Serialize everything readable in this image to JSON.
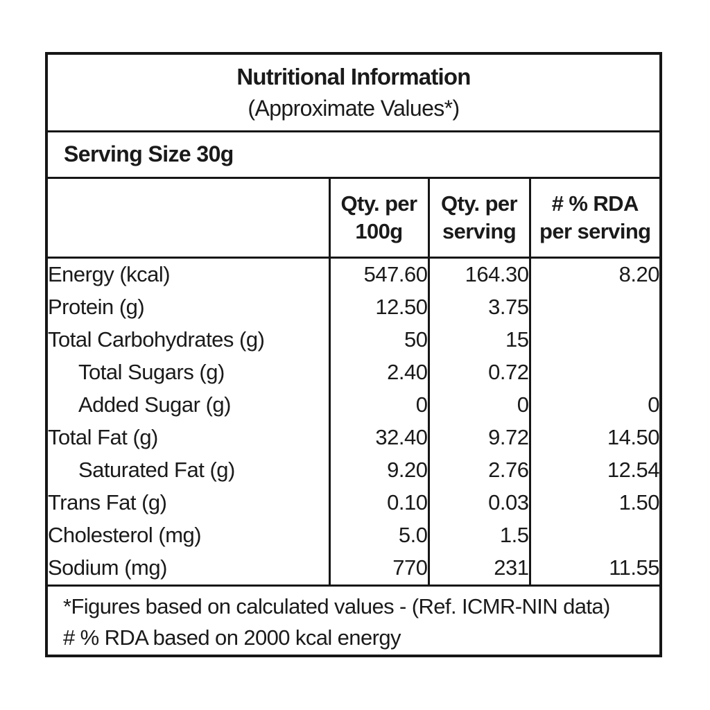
{
  "colors": {
    "background": "#ffffff",
    "border": "#161616",
    "text": "#1a1a1a"
  },
  "header": {
    "title": "Nutritional Information",
    "subtitle": "(Approximate Values*)"
  },
  "serving": {
    "label": "Serving Size 30g"
  },
  "table": {
    "columns": [
      {
        "line1": "Qty. per",
        "line2": "100g"
      },
      {
        "line1": "Qty. per",
        "line2": "serving"
      },
      {
        "line1": "# % RDA",
        "line2": "per serving"
      }
    ],
    "rows": [
      {
        "label": "Energy (kcal)",
        "qty_100g": "547.60",
        "qty_serving": "164.30",
        "rda": "8.20"
      },
      {
        "label": "Protein (g)",
        "qty_100g": "12.50",
        "qty_serving": "3.75",
        "rda": ""
      },
      {
        "label": "Total Carbohydrates (g)",
        "qty_100g": "50",
        "qty_serving": "15",
        "rda": ""
      },
      {
        "label": "Total Sugars (g)",
        "qty_100g": "2.40",
        "qty_serving": "0.72",
        "rda": ""
      },
      {
        "label": "Added Sugar (g)",
        "qty_100g": "0",
        "qty_serving": "0",
        "rda": "0"
      },
      {
        "label": "Total Fat (g)",
        "qty_100g": "32.40",
        "qty_serving": "9.72",
        "rda": "14.50"
      },
      {
        "label": "Saturated Fat (g)",
        "qty_100g": "9.20",
        "qty_serving": "2.76",
        "rda": "12.54"
      },
      {
        "label": "Trans Fat (g)",
        "qty_100g": "0.10",
        "qty_serving": "0.03",
        "rda": "1.50"
      },
      {
        "label": "Cholesterol (mg)",
        "qty_100g": "5.0",
        "qty_serving": "1.5",
        "rda": ""
      },
      {
        "label": "Sodium (mg)",
        "qty_100g": "770",
        "qty_serving": "231",
        "rda": "11.55"
      }
    ]
  },
  "footnotes": {
    "line1": "*Figures based on calculated values - (Ref. ICMR-NIN data)",
    "line2": "# % RDA based on 2000 kcal energy"
  }
}
